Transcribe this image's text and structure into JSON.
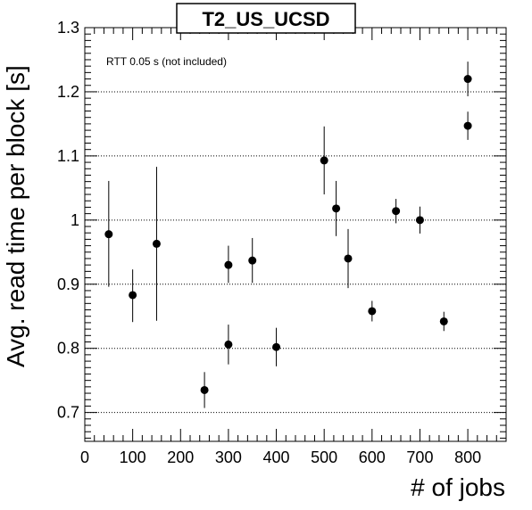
{
  "chart_data": {
    "type": "scatter",
    "title": "T2_US_UCSD",
    "annotation": "RTT 0.05 s (not included)",
    "xlabel": "# of jobs",
    "ylabel": "Avg. read time per block [s]",
    "xlim": [
      0,
      880
    ],
    "ylim": [
      0.655,
      1.3
    ],
    "x_ticks": [
      "0",
      "100",
      "200",
      "300",
      "400",
      "500",
      "600",
      "700",
      "800"
    ],
    "y_ticks": [
      "0.7",
      "0.8",
      "0.9",
      "1",
      "1.1",
      "1.2",
      "1.3"
    ],
    "grid": "horizontal dotted at y major ticks",
    "legend": "none",
    "points": [
      {
        "x": 50,
        "y": 0.978,
        "err_low": 0.082,
        "err_high": 0.083
      },
      {
        "x": 100,
        "y": 0.883,
        "err_low": 0.042,
        "err_high": 0.04
      },
      {
        "x": 150,
        "y": 0.963,
        "err_low": 0.12,
        "err_high": 0.12
      },
      {
        "x": 250,
        "y": 0.735,
        "err_low": 0.028,
        "err_high": 0.028
      },
      {
        "x": 300,
        "y": 0.93,
        "err_low": 0.028,
        "err_high": 0.03
      },
      {
        "x": 300,
        "y": 0.806,
        "err_low": 0.031,
        "err_high": 0.031
      },
      {
        "x": 350,
        "y": 0.937,
        "err_low": 0.035,
        "err_high": 0.035
      },
      {
        "x": 400,
        "y": 0.802,
        "err_low": 0.03,
        "err_high": 0.03
      },
      {
        "x": 500,
        "y": 1.093,
        "err_low": 0.053,
        "err_high": 0.053
      },
      {
        "x": 525,
        "y": 1.018,
        "err_low": 0.043,
        "err_high": 0.043
      },
      {
        "x": 550,
        "y": 0.94,
        "err_low": 0.046,
        "err_high": 0.046
      },
      {
        "x": 600,
        "y": 0.858,
        "err_low": 0.016,
        "err_high": 0.016
      },
      {
        "x": 650,
        "y": 1.014,
        "err_low": 0.019,
        "err_high": 0.019
      },
      {
        "x": 700,
        "y": 1.0,
        "err_low": 0.021,
        "err_high": 0.021
      },
      {
        "x": 750,
        "y": 0.842,
        "err_low": 0.015,
        "err_high": 0.015
      },
      {
        "x": 800,
        "y": 1.22,
        "err_low": 0.027,
        "err_high": 0.027
      },
      {
        "x": 800,
        "y": 1.147,
        "err_low": 0.022,
        "err_high": 0.022
      }
    ]
  }
}
